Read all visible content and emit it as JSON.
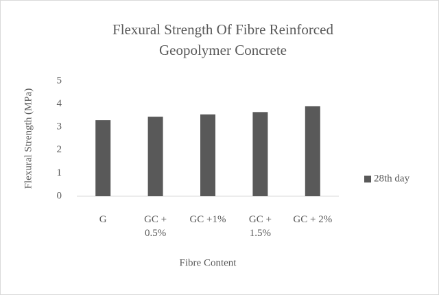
{
  "chart_data": {
    "type": "bar",
    "title": [
      "Flexural Strength Of Fibre Reinforced",
      "Geopolymer Concrete"
    ],
    "x_label": "Fibre Content",
    "y_label": "Flexural Strength (MPa)",
    "categories": [
      "G",
      "GC + 0.5%",
      "GC +1%",
      "GC + 1.5%",
      "GC + 2%"
    ],
    "series": [
      {
        "name": "28th day",
        "color": "#595959",
        "values": [
          3.3,
          3.45,
          3.55,
          3.65,
          3.9
        ]
      }
    ],
    "ylim": [
      0,
      5
    ],
    "yticks": [
      0,
      1,
      2,
      3,
      4,
      5
    ],
    "grid": false,
    "legend": "right"
  }
}
